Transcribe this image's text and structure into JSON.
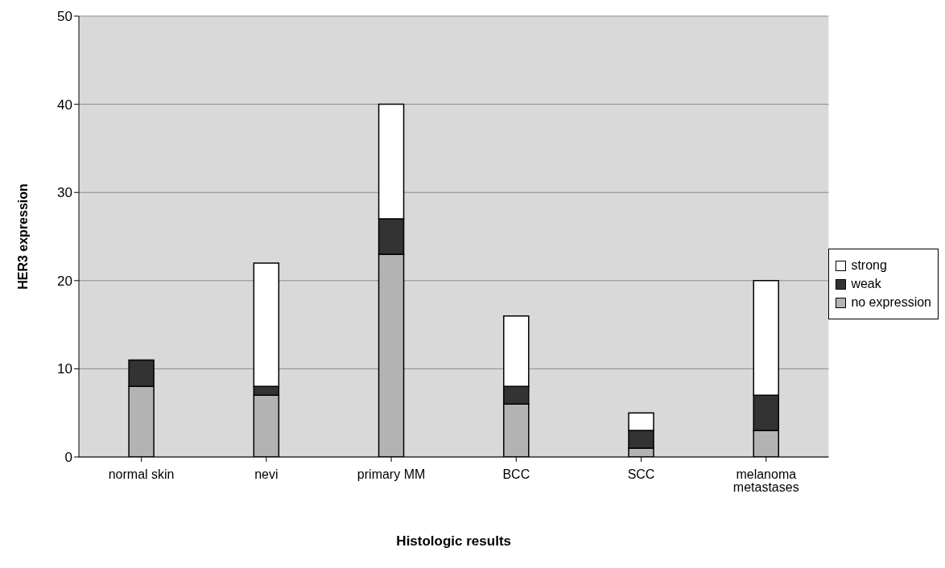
{
  "chart_data": {
    "type": "bar",
    "stacked": true,
    "xlabel": "Histologic results",
    "ylabel": "HER3 expression",
    "categories": [
      "normal skin",
      "nevi",
      "primary MM",
      "BCC",
      "SCC",
      "melanoma metastases"
    ],
    "series": [
      {
        "name": "no expression",
        "color": "#b3b3b3",
        "values": [
          8,
          7,
          23,
          6,
          1,
          3
        ]
      },
      {
        "name": "weak",
        "color": "#333333",
        "values": [
          3,
          1,
          4,
          2,
          2,
          4
        ]
      },
      {
        "name": "strong",
        "color": "#ffffff",
        "values": [
          0,
          14,
          13,
          8,
          2,
          13
        ]
      }
    ],
    "ylim": [
      0,
      50
    ],
    "yticks": [
      0,
      10,
      20,
      30,
      40,
      50
    ],
    "grid": "y",
    "legend": "right"
  }
}
